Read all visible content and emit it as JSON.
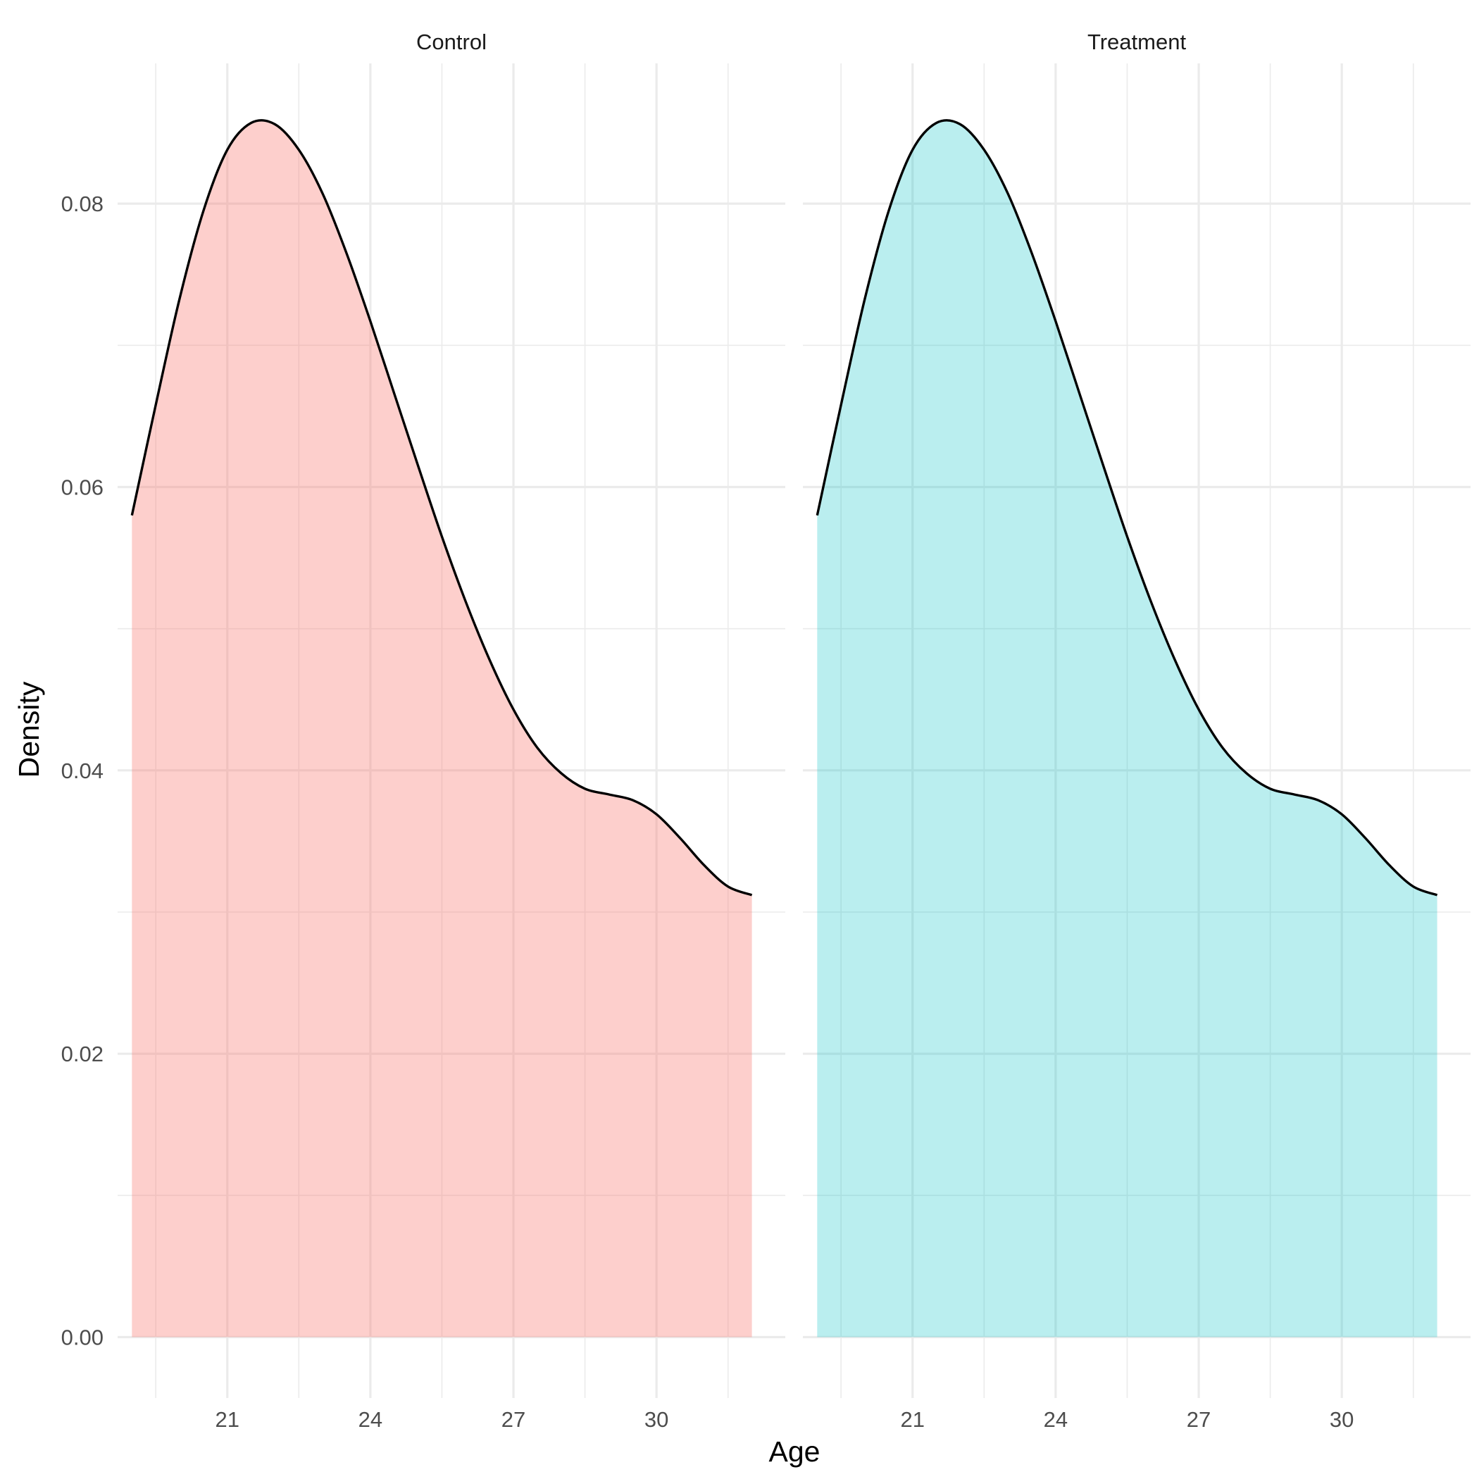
{
  "chart_data": {
    "type": "area",
    "chart_kind": "faceted density plot",
    "xlabel": "Age",
    "ylabel": "Density",
    "xlim": [
      18.7,
      32.7
    ],
    "ylim": [
      -0.0043,
      0.0899
    ],
    "x_ticks": [
      21,
      24,
      27,
      30
    ],
    "x_tick_labels": [
      "21",
      "24",
      "27",
      "30"
    ],
    "y_ticks": [
      0.0,
      0.02,
      0.04,
      0.06,
      0.08
    ],
    "y_tick_labels": [
      "0.00",
      "0.02",
      "0.04",
      "0.06",
      "0.08"
    ],
    "grid": true,
    "legend": "none",
    "facets": [
      {
        "label": "Control",
        "fill_color": "#F8766D",
        "fill_opacity": 0.35,
        "line_color": "#000000",
        "x": [
          19.0,
          19.5,
          20.0,
          20.5,
          21.0,
          21.5,
          22.0,
          22.5,
          23.0,
          23.5,
          24.0,
          24.5,
          25.0,
          25.5,
          26.0,
          26.5,
          27.0,
          27.5,
          28.0,
          28.5,
          29.0,
          29.5,
          30.0,
          30.5,
          31.0,
          31.5,
          32.0
        ],
        "y": [
          0.058,
          0.0658,
          0.0733,
          0.0795,
          0.0838,
          0.0857,
          0.0856,
          0.0838,
          0.0807,
          0.0765,
          0.0717,
          0.0666,
          0.0615,
          0.0565,
          0.0519,
          0.0478,
          0.0443,
          0.0416,
          0.0398,
          0.0387,
          0.0383,
          0.0379,
          0.0369,
          0.0352,
          0.0333,
          0.0318,
          0.0312
        ]
      },
      {
        "label": "Treatment",
        "fill_color": "#00BFC4",
        "fill_opacity": 0.27,
        "line_color": "#000000",
        "x": [
          19.0,
          19.5,
          20.0,
          20.5,
          21.0,
          21.5,
          22.0,
          22.5,
          23.0,
          23.5,
          24.0,
          24.5,
          25.0,
          25.5,
          26.0,
          26.5,
          27.0,
          27.5,
          28.0,
          28.5,
          29.0,
          29.5,
          30.0,
          30.5,
          31.0,
          31.5,
          32.0
        ],
        "y": [
          0.058,
          0.0658,
          0.0733,
          0.0795,
          0.0838,
          0.0857,
          0.0856,
          0.0838,
          0.0807,
          0.0765,
          0.0717,
          0.0666,
          0.0615,
          0.0565,
          0.0519,
          0.0478,
          0.0443,
          0.0416,
          0.0398,
          0.0387,
          0.0383,
          0.0379,
          0.0369,
          0.0352,
          0.0333,
          0.0318,
          0.0312
        ]
      }
    ]
  }
}
